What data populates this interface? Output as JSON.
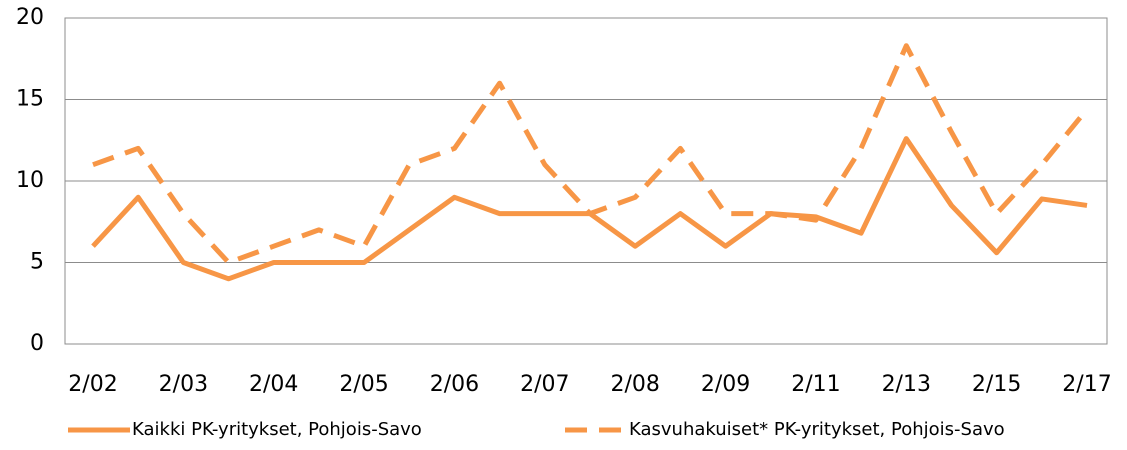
{
  "chart_data": {
    "type": "line",
    "categories": [
      "2/02",
      null,
      "2/03",
      null,
      "2/04",
      null,
      "2/05",
      null,
      "2/06",
      null,
      "2/07",
      null,
      "2/08",
      null,
      "2/09",
      null,
      "2/11",
      null,
      "2/13",
      null,
      "2/15",
      null,
      "2/17"
    ],
    "series": [
      {
        "name": "Kaikki PK-yritykset, Pohjois-Savo",
        "color": "#f79646",
        "dash": false,
        "values": [
          6,
          9,
          5,
          4,
          5,
          5,
          5,
          7,
          9,
          8,
          8,
          8,
          6,
          8,
          6,
          8,
          7.8,
          6.8,
          12.6,
          8.5,
          5.6,
          8.9,
          8.5
        ]
      },
      {
        "name": "Kasvuhakuiset* PK-yritykset, Pohjois-Savo",
        "color": "#f79646",
        "dash": true,
        "values": [
          11,
          12,
          8,
          5,
          6,
          7,
          6,
          11,
          12,
          16,
          11,
          8,
          9,
          12,
          8,
          8,
          7.6,
          12,
          18.3,
          13,
          8,
          11,
          14.4
        ]
      }
    ],
    "ylim": [
      0,
      20
    ],
    "yticks": [
      0,
      5,
      10,
      15,
      20
    ],
    "grid": true
  }
}
